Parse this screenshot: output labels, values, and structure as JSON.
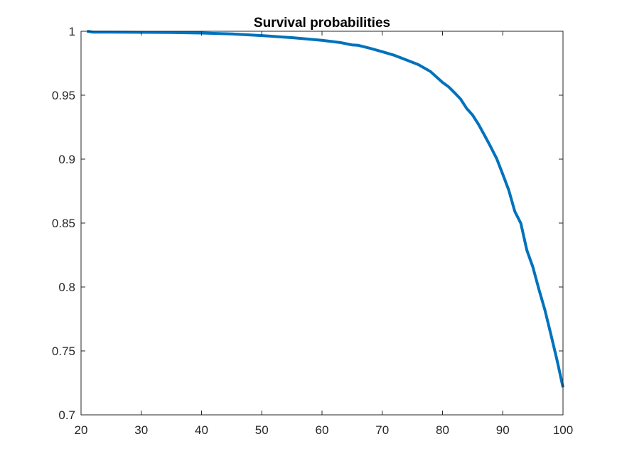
{
  "chart_data": {
    "type": "line",
    "title": "Survival probabilities",
    "xlabel": "",
    "ylabel": "",
    "xlim": [
      20,
      100
    ],
    "ylim": [
      0.7,
      1
    ],
    "xticks": [
      20,
      30,
      40,
      50,
      60,
      70,
      80,
      90,
      100
    ],
    "xtick_labels": [
      "20",
      "30",
      "40",
      "50",
      "60",
      "70",
      "80",
      "90",
      "100"
    ],
    "yticks": [
      0.7,
      0.75,
      0.8,
      0.85,
      0.9,
      0.95,
      1
    ],
    "ytick_labels": [
      "0.7",
      "0.75",
      "0.8",
      "0.85",
      "0.9",
      "0.95",
      "1"
    ],
    "grid": false,
    "legend": "none",
    "series": [
      {
        "color": "#0072BD",
        "x": [
          21,
          22,
          25,
          30,
          35,
          40,
          45,
          50,
          55,
          60,
          63,
          65,
          66,
          68,
          70,
          72,
          74,
          76,
          78,
          80,
          81,
          82,
          83,
          84,
          85,
          86,
          87,
          88,
          89,
          90,
          91,
          92,
          93,
          94,
          95,
          96,
          97,
          98,
          99,
          100
        ],
        "y": [
          1.0,
          0.9993,
          0.9993,
          0.9992,
          0.999,
          0.9986,
          0.9979,
          0.9966,
          0.995,
          0.9929,
          0.9912,
          0.9893,
          0.989,
          0.9866,
          0.984,
          0.9812,
          0.9776,
          0.9739,
          0.9685,
          0.96,
          0.9566,
          0.9519,
          0.947,
          0.9397,
          0.9344,
          0.927,
          0.9184,
          0.9096,
          0.9003,
          0.8882,
          0.8757,
          0.8591,
          0.8498,
          0.8288,
          0.8156,
          0.7982,
          0.7819,
          0.7627,
          0.743,
          0.7215
        ]
      }
    ]
  }
}
